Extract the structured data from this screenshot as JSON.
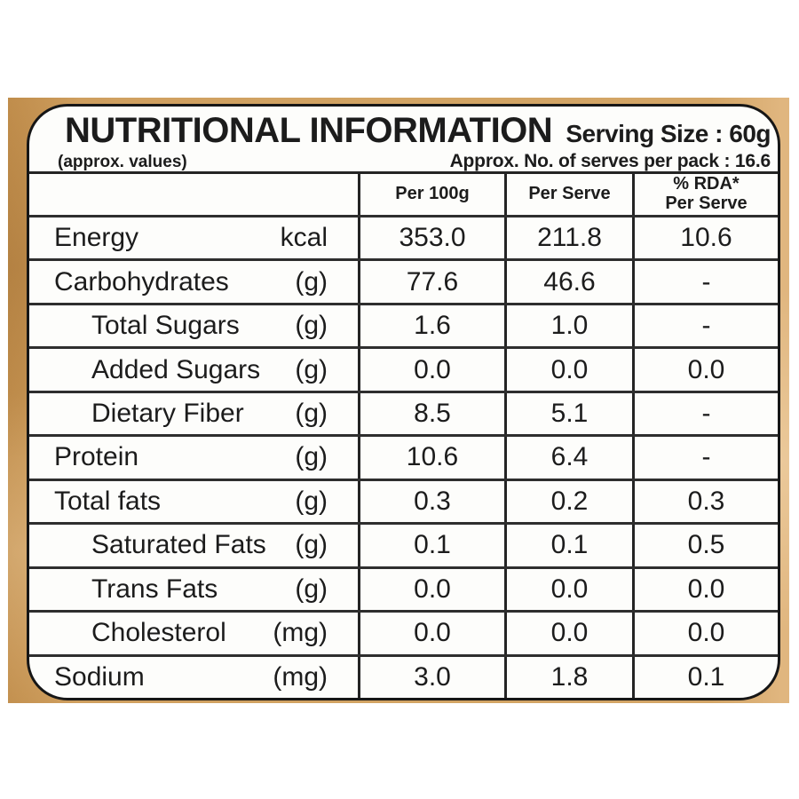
{
  "colors": {
    "band_tan": "#d2a464",
    "panel_bg": "#fdfdfb",
    "line": "#242424",
    "text": "#1c1c1c"
  },
  "header": {
    "title": "NUTRITIONAL INFORMATION",
    "approx_note": "(approx. values)",
    "serving_size": "Serving Size : 60g",
    "serves_per_pack": "Approx. No. of serves per pack : 16.6"
  },
  "table": {
    "columns": [
      {
        "label": "Per 100g"
      },
      {
        "label": "Per Serve"
      },
      {
        "line1": "% RDA*",
        "line2": "Per Serve"
      }
    ],
    "rows": [
      {
        "name": "Energy",
        "unit": "kcal",
        "indent": false,
        "per_100g": "353.0",
        "per_serve": "211.8",
        "rda_per_serve": "10.6"
      },
      {
        "name": "Carbohydrates",
        "unit": "(g)",
        "indent": false,
        "per_100g": "77.6",
        "per_serve": "46.6",
        "rda_per_serve": "-"
      },
      {
        "name": "Total Sugars",
        "unit": "(g)",
        "indent": true,
        "per_100g": "1.6",
        "per_serve": "1.0",
        "rda_per_serve": "-"
      },
      {
        "name": "Added Sugars",
        "unit": "(g)",
        "indent": true,
        "per_100g": "0.0",
        "per_serve": "0.0",
        "rda_per_serve": "0.0"
      },
      {
        "name": "Dietary Fiber",
        "unit": "(g)",
        "indent": true,
        "per_100g": "8.5",
        "per_serve": "5.1",
        "rda_per_serve": "-"
      },
      {
        "name": "Protein",
        "unit": "(g)",
        "indent": false,
        "per_100g": "10.6",
        "per_serve": "6.4",
        "rda_per_serve": "-"
      },
      {
        "name": "Total fats",
        "unit": "(g)",
        "indent": false,
        "per_100g": "0.3",
        "per_serve": "0.2",
        "rda_per_serve": "0.3"
      },
      {
        "name": "Saturated Fats",
        "unit": "(g)",
        "indent": true,
        "per_100g": "0.1",
        "per_serve": "0.1",
        "rda_per_serve": "0.5"
      },
      {
        "name": "Trans Fats",
        "unit": "(g)",
        "indent": true,
        "per_100g": "0.0",
        "per_serve": "0.0",
        "rda_per_serve": "0.0"
      },
      {
        "name": "Cholesterol",
        "unit": "(mg)",
        "indent": true,
        "per_100g": "0.0",
        "per_serve": "0.0",
        "rda_per_serve": "0.0"
      },
      {
        "name": "Sodium",
        "unit": "(mg)",
        "indent": false,
        "per_100g": "3.0",
        "per_serve": "1.8",
        "rda_per_serve": "0.1"
      }
    ]
  }
}
